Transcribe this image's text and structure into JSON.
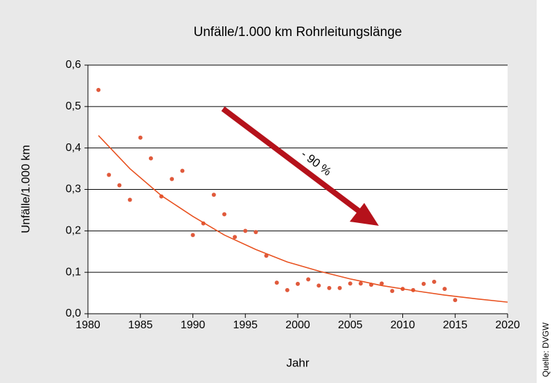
{
  "chart_data": {
    "type": "scatter",
    "title": "Unfälle/1.000 km Rohrleitungslänge",
    "x_label": "Jahr",
    "y_label": "Unfälle/1.000 km",
    "annotation": "- 90 %",
    "source": "Quelle: DVGW",
    "x": [
      1981,
      1982,
      1983,
      1984,
      1985,
      1986,
      1987,
      1988,
      1989,
      1990,
      1991,
      1992,
      1993,
      1994,
      1995,
      1996,
      1997,
      1998,
      1999,
      2000,
      2001,
      2002,
      2003,
      2004,
      2005,
      2006,
      2007,
      2008,
      2009,
      2010,
      2011,
      2012,
      2013,
      2014,
      2015
    ],
    "values": [
      0.54,
      0.335,
      0.31,
      0.275,
      0.425,
      0.375,
      0.283,
      0.325,
      0.345,
      0.19,
      0.218,
      0.287,
      0.24,
      0.185,
      0.2,
      0.197,
      0.14,
      0.075,
      0.057,
      0.072,
      0.083,
      0.068,
      0.062,
      0.062,
      0.073,
      0.073,
      0.07,
      0.073,
      0.055,
      0.06,
      0.057,
      0.072,
      0.077,
      0.06,
      0.033
    ],
    "color": "#e05a3c",
    "trend": {
      "x": [
        1981,
        1984,
        1987,
        1990,
        1993,
        1996,
        1999,
        2002,
        2005,
        2008,
        2011,
        2014,
        2017,
        2020
      ],
      "values": [
        0.43,
        0.35,
        0.285,
        0.235,
        0.19,
        0.155,
        0.125,
        0.103,
        0.084,
        0.068,
        0.056,
        0.045,
        0.036,
        0.028
      ],
      "color": "#e8501e"
    },
    "arrow_color": "#b5121b",
    "xlim": [
      1980,
      2020
    ],
    "xticks": [
      1980,
      1985,
      1990,
      1995,
      2000,
      2005,
      2010,
      2015,
      2020
    ],
    "ylim": [
      0,
      0.6
    ],
    "yticks": [
      {
        "value": 0,
        "label": "0,0"
      },
      {
        "value": 0.1,
        "label": "0,1"
      },
      {
        "value": 0.2,
        "label": "0,2"
      },
      {
        "value": 0.3,
        "label": "0,3"
      },
      {
        "value": 0.4,
        "label": "0,4"
      },
      {
        "value": 0.5,
        "label": "0,5"
      },
      {
        "value": 0.6,
        "label": "0,6"
      }
    ],
    "grid": true
  }
}
